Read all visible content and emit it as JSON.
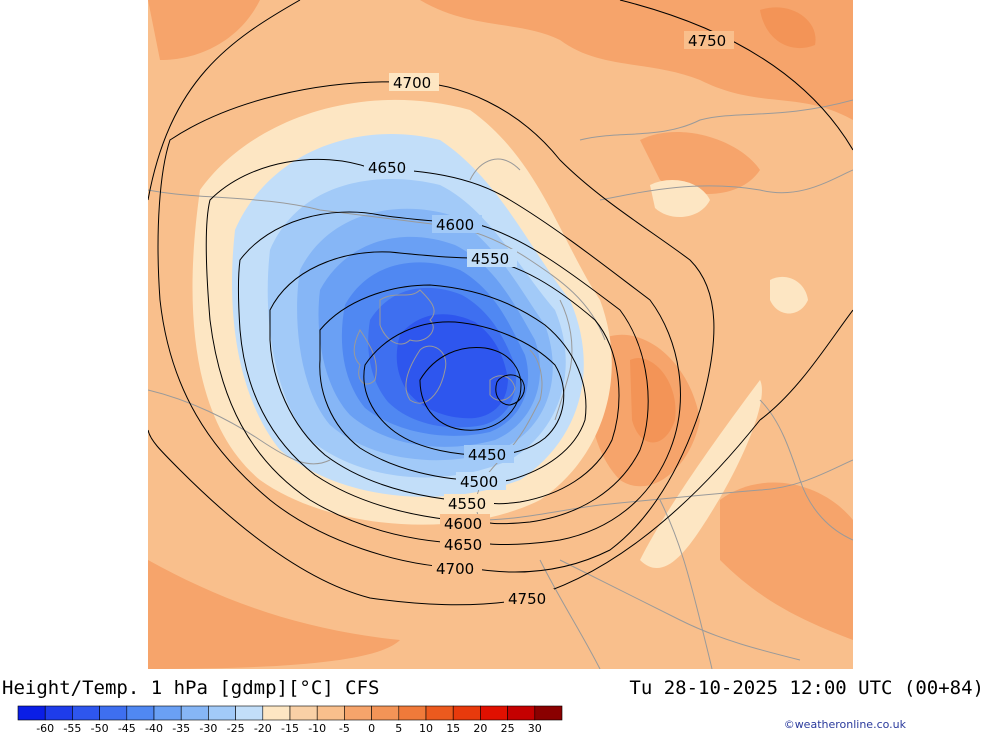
{
  "title_left": "Height/Temp. 1 hPa [gdmp][°C] CFS",
  "title_right": "Tu 28-10-2025 12:00 UTC (00+84)",
  "credit": "©weatheronline.co.uk",
  "colors": {
    "land_bg": "#f9bf8c",
    "warm_patch": "#f6a46b",
    "hot_patch": "#f39457",
    "pale": "#fde6c3",
    "coast": "#9a9a9a",
    "contour": "#000000"
  },
  "legend": {
    "colors": [
      "#0a1ee6",
      "#1e3cea",
      "#2e56ee",
      "#3e6ff0",
      "#5088f2",
      "#6aa0f4",
      "#86b6f6",
      "#a2caf8",
      "#c2def9",
      "#fde6c3",
      "#f9d0a6",
      "#f9bf8c",
      "#f6a46b",
      "#f39457",
      "#f07a3a",
      "#ec5a1e",
      "#e83a0c",
      "#e01000",
      "#c40000",
      "#8a0000"
    ],
    "labels": [
      "-60",
      "-55",
      "-50",
      "-45",
      "-40",
      "-35",
      "-30",
      "-25",
      "-20",
      "-15",
      "-10",
      "-5",
      "0",
      "5",
      "10",
      "15",
      "20",
      "25",
      "30"
    ]
  },
  "contours": [
    {
      "label": "4750"
    },
    {
      "label": "4700"
    },
    {
      "label": "4650"
    },
    {
      "label": "4600"
    },
    {
      "label": "4550"
    },
    {
      "label": "4450"
    },
    {
      "label": "4500"
    },
    {
      "label": "4550"
    },
    {
      "label": "4600"
    },
    {
      "label": "4650"
    },
    {
      "label": "4700"
    },
    {
      "label": "4750"
    }
  ]
}
